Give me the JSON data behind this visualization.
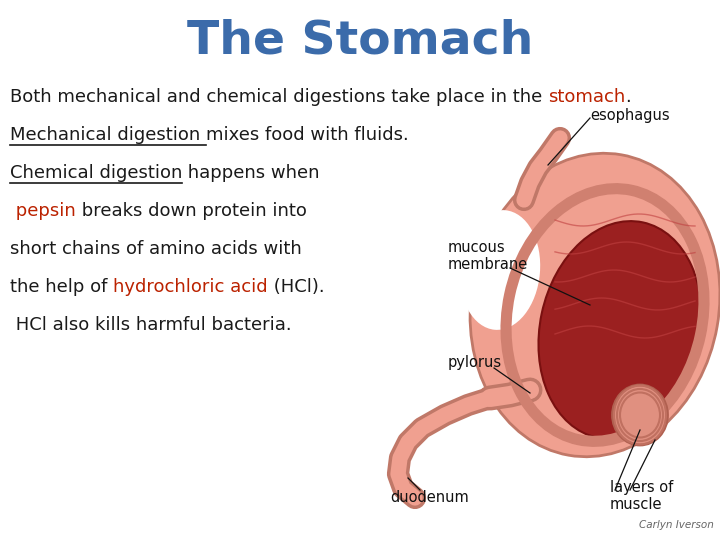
{
  "title": "The Stomach",
  "title_color": "#3b6baa",
  "title_fontsize": 34,
  "bg_color": "#ffffff",
  "body_text_color": "#1a1a1a",
  "red_color": "#bb2200",
  "body_fontsize": 13.0,
  "annotation_fontsize": 10.5,
  "credit": "Carlyn Iverson",
  "credit_fontsize": 7.5,
  "lines": [
    [
      {
        "text": "Both mechanical and chemical digestions take place in the ",
        "color": "#1a1a1a",
        "underline": false
      },
      {
        "text": "stomach",
        "color": "#bb2200",
        "underline": false
      },
      {
        "text": ".",
        "color": "#1a1a1a",
        "underline": false
      }
    ],
    [
      {
        "text": "Mechanical digestion ",
        "color": "#1a1a1a",
        "underline": true
      },
      {
        "text": "mixes food with fluids.",
        "color": "#1a1a1a",
        "underline": false
      }
    ],
    [
      {
        "text": "Chemical digestion",
        "color": "#1a1a1a",
        "underline": true
      },
      {
        "text": " happens when",
        "color": "#1a1a1a",
        "underline": false
      }
    ],
    [
      {
        "text": " pepsin",
        "color": "#bb2200",
        "underline": false
      },
      {
        "text": " breaks down protein into",
        "color": "#1a1a1a",
        "underline": false
      }
    ],
    [
      {
        "text": "short chains of amino acids with",
        "color": "#1a1a1a",
        "underline": false
      }
    ],
    [
      {
        "text": "the help of ",
        "color": "#1a1a1a",
        "underline": false
      },
      {
        "text": "hydrochloric acid",
        "color": "#bb2200",
        "underline": false
      },
      {
        "text": " (HCl).",
        "color": "#1a1a1a",
        "underline": false
      }
    ],
    [
      {
        "text": " HCl also kills harmful bacteria.",
        "color": "#1a1a1a",
        "underline": false
      }
    ]
  ],
  "stomach_pink": "#f0a090",
  "stomach_edge": "#c07868",
  "inner_red": "#9b2020",
  "inner_dark": "#7a1010",
  "muscle_pink": "#e8958a"
}
